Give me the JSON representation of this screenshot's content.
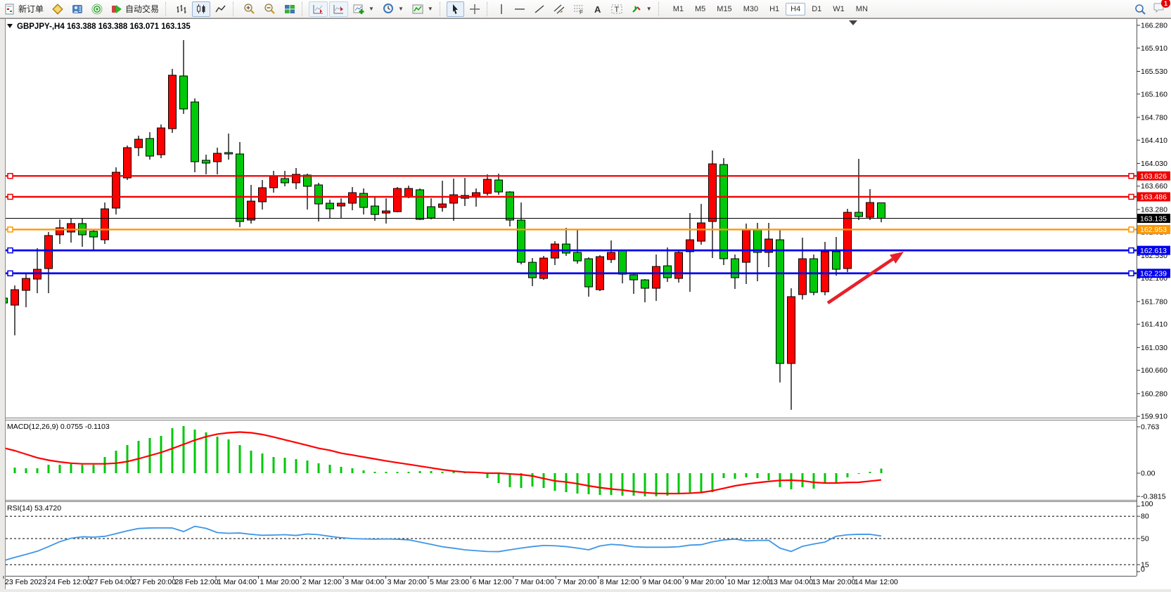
{
  "toolbar": {
    "new_order_label": "新订单",
    "auto_trading_label": "自动交易",
    "timeframes": [
      "M1",
      "M5",
      "M15",
      "M30",
      "H1",
      "H4",
      "D1",
      "W1",
      "MN"
    ],
    "active_timeframe": "H4",
    "notification_badge": "1"
  },
  "chart": {
    "title": "GBPJPY-,H4",
    "ohlc_text": "163.388 163.388 163.071 163.135",
    "price_axis_ticks": [
      "166.280",
      "165.910",
      "165.530",
      "165.160",
      "164.780",
      "164.410",
      "164.030",
      "163.660",
      "163.280",
      "162.910",
      "162.530",
      "162.160",
      "161.780",
      "161.410",
      "161.030",
      "160.660",
      "160.280",
      "159.910"
    ],
    "horizontal_lines": [
      {
        "price": 163.826,
        "label": "163.826",
        "color": "#f00000"
      },
      {
        "price": 163.486,
        "label": "163.486",
        "color": "#f00000"
      },
      {
        "price": 162.953,
        "label": "162.953",
        "color": "#ff9800"
      },
      {
        "price": 162.613,
        "label": "162.613",
        "color": "#0000ee"
      },
      {
        "price": 162.239,
        "label": "162.239",
        "color": "#0000ee"
      }
    ],
    "bid_line": {
      "price": 163.135,
      "label": "163.135",
      "color": "#000000"
    },
    "time_axis_labels": [
      "23 Feb 2023",
      "24 Feb 12:00",
      "27 Feb 04:00",
      "27 Feb 20:00",
      "28 Feb 12:00",
      "1 Mar 04:00",
      "1 Mar 20:00",
      "2 Mar 12:00",
      "3 Mar 04:00",
      "3 Mar 20:00",
      "5 Mar 23:00",
      "6 Mar 12:00",
      "7 Mar 04:00",
      "7 Mar 20:00",
      "8 Mar 12:00",
      "9 Mar 04:00",
      "9 Mar 20:00",
      "10 Mar 12:00",
      "13 Mar 04:00",
      "13 Mar 20:00",
      "14 Mar 12:00"
    ],
    "trend_arrow": {
      "from_bar": 73.25,
      "from_price": 161.756,
      "to_bar": 80.0,
      "to_price": 162.592,
      "color": "#e8202a"
    }
  },
  "chart_data": {
    "type": "candlestick",
    "symbol": "GBPJPY-",
    "timeframe": "H4",
    "ohlc_last": {
      "open": 163.388,
      "high": 163.388,
      "low": 163.071,
      "close": 163.135
    },
    "candles": [
      [
        161.836,
        161.916,
        161.538,
        161.756
      ],
      [
        161.721,
        162.042,
        161.229,
        161.973
      ],
      [
        161.962,
        162.225,
        161.687,
        162.156
      ],
      [
        162.145,
        162.649,
        161.916,
        162.305
      ],
      [
        162.317,
        162.912,
        161.916,
        162.855
      ],
      [
        162.867,
        163.118,
        162.717,
        162.981
      ],
      [
        162.912,
        163.141,
        162.74,
        163.05
      ],
      [
        163.05,
        163.141,
        162.671,
        162.867
      ],
      [
        162.924,
        162.947,
        162.603,
        162.832
      ],
      [
        162.786,
        163.393,
        162.717,
        163.29
      ],
      [
        163.302,
        163.966,
        163.198,
        163.886
      ],
      [
        163.794,
        164.321,
        163.76,
        164.287
      ],
      [
        164.287,
        164.482,
        164.149,
        164.424
      ],
      [
        164.436,
        164.539,
        164.092,
        164.149
      ],
      [
        164.172,
        164.665,
        164.115,
        164.608
      ],
      [
        164.596,
        165.57,
        164.527,
        165.467
      ],
      [
        165.455,
        166.039,
        164.837,
        164.917
      ],
      [
        165.031,
        165.089,
        163.886,
        164.058
      ],
      [
        164.081,
        164.172,
        163.852,
        164.035
      ],
      [
        164.058,
        164.287,
        163.852,
        164.195
      ],
      [
        164.207,
        164.516,
        164.092,
        164.184
      ],
      [
        164.184,
        164.378,
        162.992,
        163.084
      ],
      [
        163.107,
        163.68,
        163.05,
        163.416
      ],
      [
        163.405,
        163.76,
        163.279,
        163.634
      ],
      [
        163.634,
        163.909,
        163.554,
        163.817
      ],
      [
        163.783,
        163.909,
        163.657,
        163.714
      ],
      [
        163.714,
        163.955,
        163.611,
        163.852
      ],
      [
        163.84,
        163.863,
        163.279,
        163.657
      ],
      [
        163.68,
        163.714,
        163.084,
        163.37
      ],
      [
        163.382,
        163.439,
        163.13,
        163.29
      ],
      [
        163.336,
        163.462,
        163.141,
        163.382
      ],
      [
        163.382,
        163.645,
        163.267,
        163.554
      ],
      [
        163.542,
        163.622,
        163.198,
        163.313
      ],
      [
        163.336,
        163.473,
        163.095,
        163.198
      ],
      [
        163.221,
        163.462,
        163.05,
        163.256
      ],
      [
        163.244,
        163.645,
        163.233,
        163.622
      ],
      [
        163.485,
        163.668,
        163.462,
        163.622
      ],
      [
        163.6,
        163.622,
        163.107,
        163.118
      ],
      [
        163.325,
        163.462,
        163.118,
        163.141
      ],
      [
        163.313,
        163.748,
        163.244,
        163.37
      ],
      [
        163.382,
        163.783,
        163.095,
        163.519
      ],
      [
        163.462,
        163.794,
        163.336,
        163.508
      ],
      [
        163.496,
        163.622,
        163.325,
        163.554
      ],
      [
        163.542,
        163.852,
        163.508,
        163.771
      ],
      [
        163.76,
        163.863,
        163.519,
        163.565
      ],
      [
        163.565,
        163.577,
        163.004,
        163.107
      ],
      [
        163.107,
        163.393,
        162.385,
        162.419
      ],
      [
        162.419,
        162.488,
        162.031,
        162.168
      ],
      [
        162.156,
        162.523,
        162.133,
        162.488
      ],
      [
        162.488,
        162.763,
        162.374,
        162.717
      ],
      [
        162.717,
        162.981,
        162.523,
        162.569
      ],
      [
        162.58,
        162.958,
        162.396,
        162.442
      ],
      [
        162.477,
        162.5,
        161.859,
        162.019
      ],
      [
        161.973,
        162.534,
        161.95,
        162.511
      ],
      [
        162.465,
        162.775,
        162.408,
        162.58
      ],
      [
        162.603,
        162.626,
        162.076,
        162.225
      ],
      [
        162.214,
        162.237,
        161.905,
        162.133
      ],
      [
        162.133,
        162.145,
        161.767,
        161.996
      ],
      [
        161.996,
        162.546,
        161.79,
        162.351
      ],
      [
        162.362,
        162.66,
        162.099,
        162.168
      ],
      [
        162.156,
        162.603,
        162.088,
        162.58
      ],
      [
        162.592,
        163.221,
        161.939,
        162.786
      ],
      [
        162.763,
        163.37,
        162.706,
        163.061
      ],
      [
        163.084,
        164.241,
        162.488,
        164.023
      ],
      [
        164.012,
        164.115,
        162.374,
        162.477
      ],
      [
        162.477,
        162.546,
        161.985,
        162.168
      ],
      [
        162.419,
        163.05,
        162.065,
        162.947
      ],
      [
        162.947,
        163.061,
        162.11,
        162.58
      ],
      [
        162.58,
        163.061,
        162.34,
        162.798
      ],
      [
        162.786,
        162.947,
        160.461,
        160.771
      ],
      [
        160.771,
        161.996,
        160.015,
        161.859
      ],
      [
        161.893,
        162.82,
        161.813,
        162.477
      ],
      [
        162.477,
        162.546,
        161.882,
        161.928
      ],
      [
        161.939,
        162.752,
        161.882,
        162.592
      ],
      [
        162.592,
        162.832,
        162.202,
        162.305
      ],
      [
        162.317,
        163.29,
        162.26,
        163.233
      ],
      [
        163.233,
        164.104,
        163.107,
        163.164
      ],
      [
        163.153,
        163.611,
        163.107,
        163.393
      ],
      [
        163.388,
        163.388,
        163.071,
        163.135
      ]
    ],
    "macd": {
      "label": "MACD(12,26,9)",
      "values_text": "0.0755 -0.1103",
      "axis_labels": [
        "0.763",
        "0.00",
        "-0.3815"
      ],
      "histogram": [
        0.15,
        0.092,
        0.081,
        0.081,
        0.139,
        0.139,
        0.15,
        0.139,
        0.139,
        0.266,
        0.37,
        0.462,
        0.532,
        0.578,
        0.613,
        0.74,
        0.775,
        0.717,
        0.671,
        0.601,
        0.555,
        0.462,
        0.37,
        0.324,
        0.266,
        0.254,
        0.231,
        0.208,
        0.162,
        0.139,
        0.104,
        0.081,
        0.046,
        0.023,
        0.023,
        0.023,
        0.023,
        0.035,
        0.035,
        0.023,
        0.035,
        0.023,
        0.023,
        -0.081,
        -0.162,
        -0.231,
        -0.243,
        -0.22,
        -0.243,
        -0.289,
        -0.312,
        -0.335,
        -0.347,
        -0.358,
        -0.358,
        -0.37,
        -0.37,
        -0.381,
        -0.381,
        -0.37,
        -0.347,
        -0.335,
        -0.324,
        -0.312,
        -0.081,
        -0.092,
        -0.069,
        -0.081,
        -0.116,
        -0.231,
        -0.266,
        -0.231,
        -0.254,
        -0.173,
        -0.162,
        -0.069,
        -0.012,
        0.023,
        0.0755
      ],
      "signal": [
        0.416,
        0.37,
        0.312,
        0.254,
        0.214,
        0.185,
        0.164,
        0.154,
        0.154,
        0.154,
        0.164,
        0.191,
        0.237,
        0.289,
        0.341,
        0.405,
        0.474,
        0.543,
        0.601,
        0.642,
        0.665,
        0.676,
        0.665,
        0.636,
        0.595,
        0.549,
        0.503,
        0.457,
        0.41,
        0.376,
        0.329,
        0.298,
        0.266,
        0.234,
        0.202,
        0.173,
        0.145,
        0.116,
        0.087,
        0.058,
        0.035,
        0.017,
        0.012,
        0.0,
        0.0,
        -0.012,
        -0.023,
        -0.046,
        -0.087,
        -0.127,
        -0.145,
        -0.173,
        -0.208,
        -0.237,
        -0.26,
        -0.277,
        -0.301,
        -0.32,
        -0.332,
        -0.335,
        -0.335,
        -0.329,
        -0.318,
        -0.289,
        -0.249,
        -0.208,
        -0.179,
        -0.156,
        -0.136,
        -0.119,
        -0.116,
        -0.125,
        -0.15,
        -0.162,
        -0.162,
        -0.153,
        -0.15,
        -0.131,
        -0.1103
      ]
    },
    "rsi": {
      "label": "RSI(14)",
      "value_text": "53.4720",
      "axis_labels": [
        "100",
        "80",
        "50",
        "15",
        "0"
      ],
      "levels": [
        80,
        50,
        15
      ],
      "range": [
        0,
        100
      ],
      "values": [
        20.3,
        24.8,
        28.8,
        33.0,
        39.2,
        45.8,
        50.5,
        52.4,
        51.9,
        53.0,
        56.6,
        60.4,
        63.5,
        64.2,
        64.4,
        64.2,
        59.4,
        66.5,
        63.7,
        58.0,
        57.1,
        57.5,
        55.7,
        54.4,
        54.7,
        55.2,
        54.2,
        56.1,
        55.2,
        53.0,
        51.1,
        50.0,
        49.5,
        49.2,
        49.5,
        49.1,
        48.3,
        45.3,
        42.2,
        39.0,
        37.1,
        34.9,
        33.7,
        32.7,
        32.5,
        34.9,
        37.3,
        39.2,
        40.8,
        40.3,
        39.2,
        37.3,
        34.9,
        40.1,
        42.2,
        41.2,
        39.0,
        38.4,
        38.4,
        38.4,
        39.0,
        41.2,
        41.8,
        45.6,
        48.1,
        49.3,
        46.9,
        47.5,
        47.6,
        37.1,
        32.7,
        39.6,
        42.7,
        45.3,
        53.1,
        55.1,
        55.7,
        55.7,
        53.47
      ]
    }
  },
  "colors": {
    "bull": "#ff0000",
    "bear": "#00c80a",
    "wick": "#000000",
    "macd_hist": "#00c80a",
    "macd_signal": "#ff0000",
    "rsi_line": "#3d96e8",
    "axis_text": "#000000"
  }
}
